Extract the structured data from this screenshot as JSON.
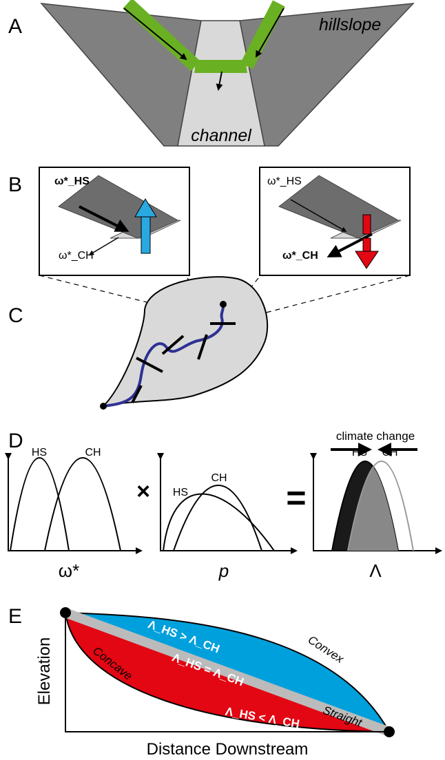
{
  "panels": {
    "a": {
      "label": "A",
      "hillslope": "hillslope",
      "channel": "channel"
    },
    "b": {
      "label": "B",
      "left": {
        "hs": "ω*_HS",
        "ch": "ω*_CH"
      },
      "right": {
        "hs": "ω*_HS",
        "ch": "ω*_CH"
      }
    },
    "c": {
      "label": "C"
    },
    "d": {
      "label": "D",
      "plot1": {
        "hs": "HS",
        "ch": "CH",
        "xlabel": "ω*"
      },
      "times": "×",
      "plot2": {
        "hs": "HS",
        "ch": "CH",
        "xlabel": "p"
      },
      "equals": "=",
      "plot3": {
        "hs": "HS",
        "ch": "CH",
        "xlabel": "Λ",
        "arrow_label": "climate change"
      }
    },
    "e": {
      "label": "E",
      "convex_relation": "Λ_HS > Λ_CH",
      "straight_relation": "Λ_HS = Λ_CH",
      "concave_relation": "Λ_HS < Λ_CH",
      "convex": "Convex",
      "concave": "Concave",
      "straight": "Straight",
      "ylabel": "Elevation",
      "xlabel": "Distance Downstream"
    }
  }
}
